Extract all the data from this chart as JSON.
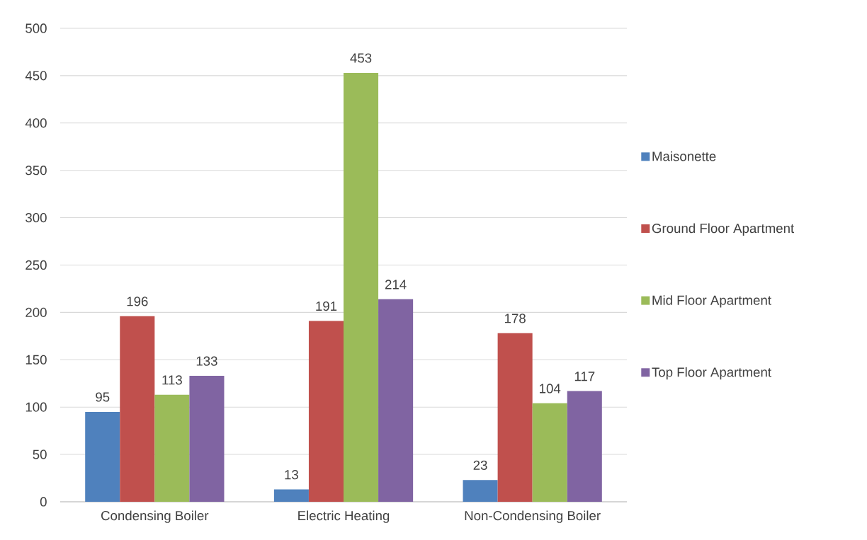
{
  "chart_data": {
    "type": "bar",
    "categories": [
      "Condensing Boiler",
      "Electric Heating",
      "Non-Condensing Boiler"
    ],
    "series": [
      {
        "name": "Maisonette",
        "color": "#4f81bd",
        "values": [
          95,
          13,
          23
        ]
      },
      {
        "name": "Ground Floor Apartment",
        "color": "#c0504d",
        "values": [
          196,
          191,
          178
        ]
      },
      {
        "name": "Mid Floor Apartment",
        "color": "#9bbb59",
        "values": [
          113,
          453,
          104
        ]
      },
      {
        "name": "Top Floor Apartment",
        "color": "#8064a2",
        "values": [
          133,
          214,
          117
        ]
      }
    ],
    "ylim": [
      0,
      500
    ],
    "yticks": [
      0,
      50,
      100,
      150,
      200,
      250,
      300,
      350,
      400,
      450,
      500
    ],
    "grid": "y",
    "legend": "right",
    "data_labels": true
  }
}
